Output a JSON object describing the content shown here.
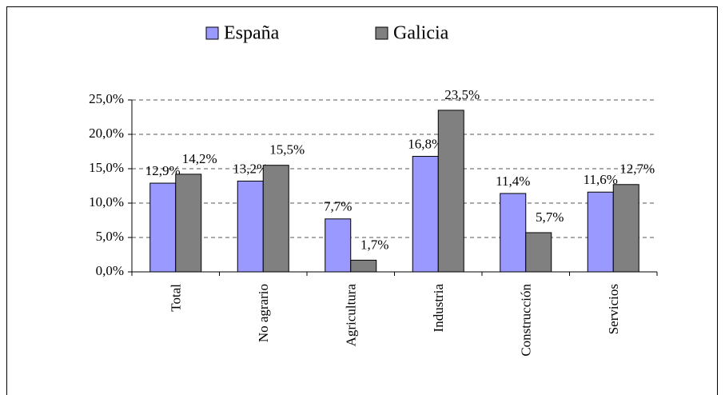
{
  "chart_data": {
    "type": "bar",
    "categories": [
      "Total",
      "No agrario",
      "Agricultura",
      "Industria",
      "Construcción",
      "Servicios"
    ],
    "series": [
      {
        "name": "España",
        "color": "#9999ff",
        "values": [
          12.9,
          13.2,
          7.7,
          16.8,
          11.4,
          11.6
        ],
        "value_labels": [
          "12,9%",
          "13,2%",
          "7,7%",
          "16,8%",
          "11,4%",
          "11,6%"
        ]
      },
      {
        "name": "Galicia",
        "color": "#808080",
        "values": [
          14.2,
          15.5,
          1.7,
          23.5,
          5.7,
          12.7
        ],
        "value_labels": [
          "14,2%",
          "15,5%",
          "1,7%",
          "23,5%",
          "5,7%",
          "12,7%"
        ]
      }
    ],
    "ylim": [
      0,
      25
    ],
    "yticks": [
      {
        "value": 0,
        "label": "0,0%"
      },
      {
        "value": 5,
        "label": "5,0%"
      },
      {
        "value": 10,
        "label": "10,0%"
      },
      {
        "value": 15,
        "label": "15,0%"
      },
      {
        "value": 20,
        "label": "20,0%"
      },
      {
        "value": 25,
        "label": "25,0%"
      }
    ],
    "grid": true,
    "legend": "top"
  }
}
